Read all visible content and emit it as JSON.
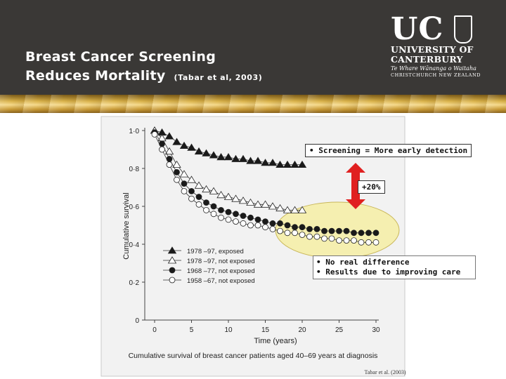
{
  "slide": {
    "title_line1": "Breast Cancer Screening",
    "title_line2": "Reduces Mortality",
    "citation": "(Tabar et al, 2003)"
  },
  "logo": {
    "uc": "UC",
    "line1": "UNIVERSITY OF",
    "line2": "CANTERBURY",
    "line3": "Te Whare Wānanga o Waitaha",
    "line4": "CHRISTCHURCH NEW ZEALAND"
  },
  "annotations": {
    "screening": "• Screening = More early detection",
    "gain": "+20%",
    "bullets": [
      "• No real difference",
      "• Results due to improving care"
    ]
  },
  "chart_data": {
    "type": "line",
    "xlabel": "Time (years)",
    "ylabel": "Cumulative survival",
    "caption": "Cumulative survival of breast cancer patients aged 40–69 years at diagnosis",
    "source": "Tabar et al. (2003)",
    "xlim": [
      0,
      30
    ],
    "ylim": [
      0,
      1.0
    ],
    "x_ticks": [
      "0",
      "5",
      "10",
      "15",
      "20",
      "25",
      "30"
    ],
    "y_ticks": [
      "0",
      "0·2",
      "0·4",
      "0·6",
      "0·8",
      "1·0"
    ],
    "grid": false,
    "legend_position": "lower-left",
    "series": [
      {
        "name": "1978 –97, exposed",
        "marker": "filled-triangle",
        "x": [
          0,
          1,
          2,
          3,
          4,
          5,
          6,
          7,
          8,
          9,
          10,
          11,
          12,
          13,
          14,
          15,
          16,
          17,
          18,
          19,
          20
        ],
        "y": [
          1.0,
          0.99,
          0.97,
          0.94,
          0.92,
          0.91,
          0.89,
          0.88,
          0.87,
          0.86,
          0.86,
          0.85,
          0.85,
          0.84,
          0.84,
          0.83,
          0.83,
          0.82,
          0.82,
          0.82,
          0.82
        ]
      },
      {
        "name": "1978 –97, not exposed",
        "marker": "open-triangle",
        "x": [
          0,
          1,
          2,
          3,
          4,
          5,
          6,
          7,
          8,
          9,
          10,
          11,
          12,
          13,
          14,
          15,
          16,
          17,
          18,
          19,
          20
        ],
        "y": [
          1.0,
          0.96,
          0.89,
          0.82,
          0.77,
          0.74,
          0.71,
          0.69,
          0.68,
          0.66,
          0.65,
          0.64,
          0.63,
          0.62,
          0.61,
          0.61,
          0.6,
          0.59,
          0.58,
          0.58,
          0.58
        ]
      },
      {
        "name": "1968 –77, not exposed",
        "marker": "filled-circle",
        "x": [
          0,
          1,
          2,
          3,
          4,
          5,
          6,
          7,
          8,
          9,
          10,
          11,
          12,
          13,
          14,
          15,
          16,
          17,
          18,
          19,
          20,
          21,
          22,
          23,
          24,
          25,
          26,
          27,
          28,
          29,
          30
        ],
        "y": [
          0.99,
          0.93,
          0.85,
          0.78,
          0.72,
          0.68,
          0.65,
          0.62,
          0.6,
          0.58,
          0.57,
          0.56,
          0.55,
          0.54,
          0.53,
          0.52,
          0.51,
          0.51,
          0.5,
          0.49,
          0.49,
          0.48,
          0.48,
          0.47,
          0.47,
          0.47,
          0.47,
          0.46,
          0.46,
          0.46,
          0.46
        ]
      },
      {
        "name": "1958 –67, not exposed",
        "marker": "open-circle",
        "x": [
          0,
          1,
          2,
          3,
          4,
          5,
          6,
          7,
          8,
          9,
          10,
          11,
          12,
          13,
          14,
          15,
          16,
          17,
          18,
          19,
          20,
          21,
          22,
          23,
          24,
          25,
          26,
          27,
          28,
          29,
          30
        ],
        "y": [
          0.98,
          0.9,
          0.82,
          0.74,
          0.68,
          0.64,
          0.61,
          0.58,
          0.56,
          0.54,
          0.53,
          0.52,
          0.51,
          0.5,
          0.5,
          0.49,
          0.48,
          0.47,
          0.46,
          0.46,
          0.45,
          0.44,
          0.44,
          0.43,
          0.43,
          0.42,
          0.42,
          0.42,
          0.41,
          0.41,
          0.41
        ]
      }
    ]
  },
  "colors": {
    "header_bg": "#3a3836",
    "ellipse_fill": "#f5efb0",
    "arrow": "#e02020"
  }
}
